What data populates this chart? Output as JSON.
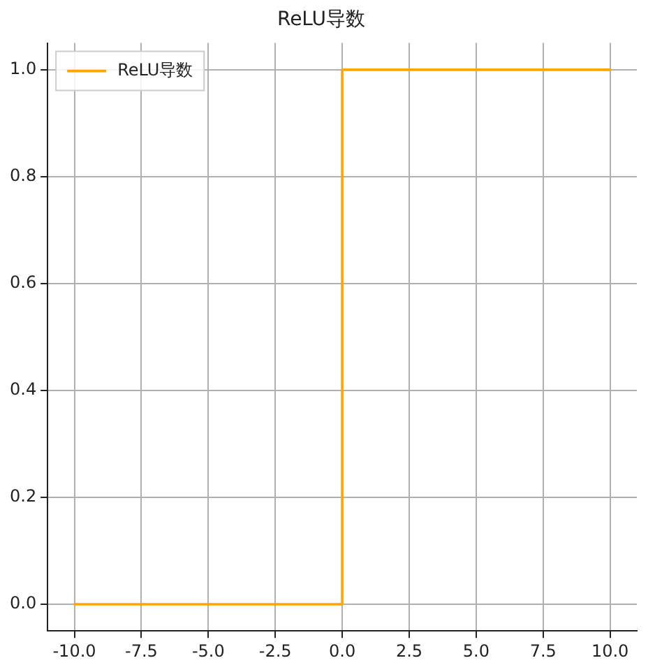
{
  "chart_data": {
    "type": "line",
    "title": "ReLU导数",
    "x": [
      -10,
      0,
      0,
      10
    ],
    "series": [
      {
        "name": "ReLU导数",
        "color": "#ffa500",
        "values": [
          0,
          0,
          1,
          1
        ]
      }
    ],
    "xlim": [
      -11,
      11
    ],
    "ylim": [
      -0.05,
      1.05
    ],
    "xticks": [
      {
        "value": -10,
        "label": "-10.0"
      },
      {
        "value": -7.5,
        "label": "-7.5"
      },
      {
        "value": -5,
        "label": "-5.0"
      },
      {
        "value": -2.5,
        "label": "-2.5"
      },
      {
        "value": 0,
        "label": "0.0"
      },
      {
        "value": 2.5,
        "label": "2.5"
      },
      {
        "value": 5,
        "label": "5.0"
      },
      {
        "value": 7.5,
        "label": "7.5"
      },
      {
        "value": 10,
        "label": "10.0"
      }
    ],
    "yticks": [
      {
        "value": 0,
        "label": "0.0"
      },
      {
        "value": 0.2,
        "label": "0.2"
      },
      {
        "value": 0.4,
        "label": "0.4"
      },
      {
        "value": 0.6,
        "label": "0.6"
      },
      {
        "value": 0.8,
        "label": "0.8"
      },
      {
        "value": 1,
        "label": "1.0"
      }
    ],
    "grid": true,
    "legend": "top left",
    "marker": "none",
    "line_style": "solid"
  }
}
